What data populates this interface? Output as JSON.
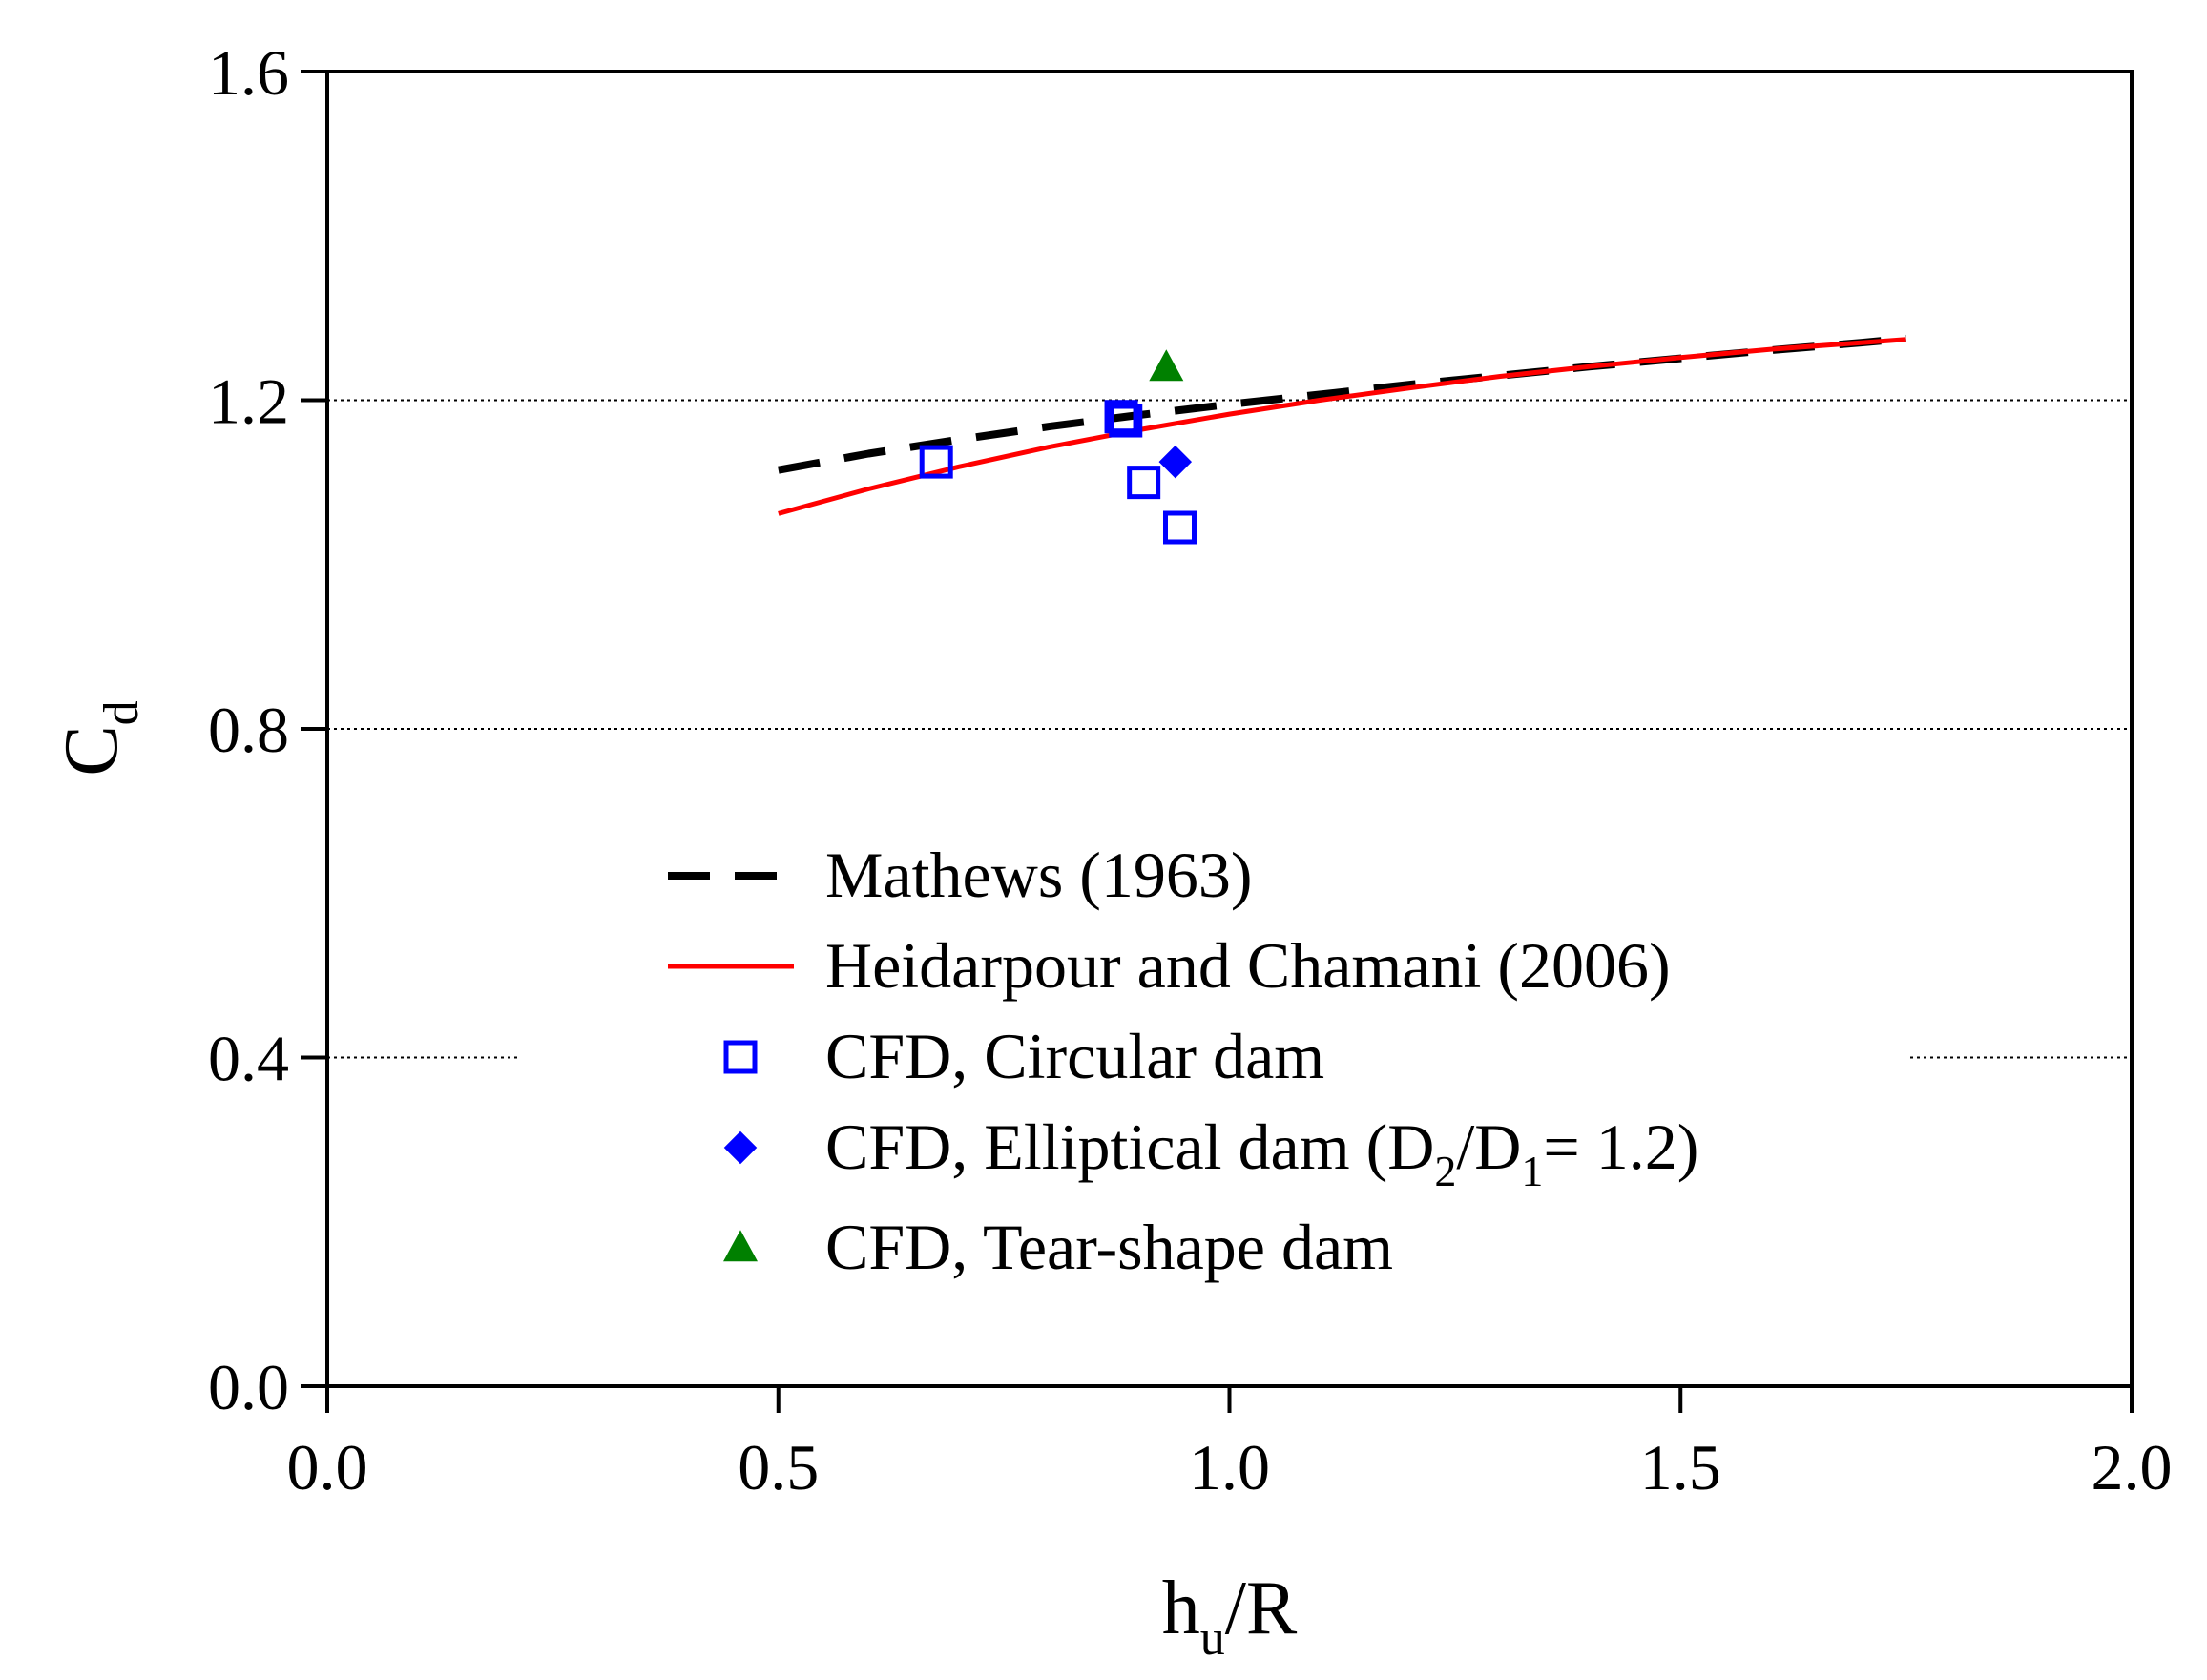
{
  "chart_data": {
    "type": "scatter",
    "xlabel": {
      "main": "h",
      "sub": "u",
      "rest": "/R"
    },
    "ylabel": {
      "main": "C",
      "sub": "d"
    },
    "xlim": [
      0.0,
      2.0
    ],
    "ylim": [
      0.0,
      1.6
    ],
    "xticks": [
      "0.0",
      "0.5",
      "1.0",
      "1.5",
      "2.0"
    ],
    "yticks": [
      "0.0",
      "0.4",
      "0.8",
      "1.2",
      "1.6"
    ],
    "xtick_values": [
      0.0,
      0.5,
      1.0,
      1.5,
      2.0
    ],
    "ytick_values": [
      0.0,
      0.4,
      0.8,
      1.2,
      1.6
    ],
    "grid": "horizontal dotted at y = 0.4, 0.8, 1.2",
    "legend_position": "center-left",
    "series": [
      {
        "name": "Mathews (1963)",
        "kind": "line",
        "style": "dashed",
        "color": "#000000",
        "x": [
          0.5,
          0.6,
          0.7,
          0.8,
          0.9,
          1.0,
          1.1,
          1.2,
          1.3,
          1.4,
          1.5,
          1.6,
          1.7,
          1.75
        ],
        "y": [
          1.115,
          1.135,
          1.152,
          1.168,
          1.182,
          1.195,
          1.207,
          1.219,
          1.23,
          1.241,
          1.251,
          1.261,
          1.27,
          1.275
        ]
      },
      {
        "name": "Heidarpour and Chamani (2006)",
        "kind": "line",
        "style": "solid",
        "color": "#ff0000",
        "x": [
          0.5,
          0.6,
          0.7,
          0.8,
          0.9,
          1.0,
          1.1,
          1.2,
          1.3,
          1.4,
          1.5,
          1.6,
          1.7,
          1.75
        ],
        "y": [
          1.062,
          1.092,
          1.119,
          1.143,
          1.164,
          1.183,
          1.2,
          1.215,
          1.229,
          1.241,
          1.252,
          1.262,
          1.27,
          1.274
        ]
      },
      {
        "name": "CFD, Circular dam",
        "kind": "scatter",
        "marker": "open-square",
        "color": "#0000ff",
        "x": [
          0.675,
          0.88,
          0.885,
          0.905,
          0.945
        ],
        "y": [
          1.125,
          1.18,
          1.175,
          1.1,
          1.045
        ]
      },
      {
        "name": "CFD, Elliptical dam (D2/D1= 1.2)",
        "name_parts": {
          "pre": "CFD, Elliptical dam (D",
          "sub1": "2",
          "mid": "/D",
          "sub2": "1",
          "post": "= 1.2)"
        },
        "kind": "scatter",
        "marker": "filled-diamond",
        "color": "#0000ff",
        "x": [
          0.94
        ],
        "y": [
          1.125
        ]
      },
      {
        "name": "CFD, Tear-shape dam",
        "kind": "scatter",
        "marker": "filled-triangle",
        "color": "#008000",
        "x": [
          0.93
        ],
        "y": [
          1.24
        ]
      }
    ]
  }
}
